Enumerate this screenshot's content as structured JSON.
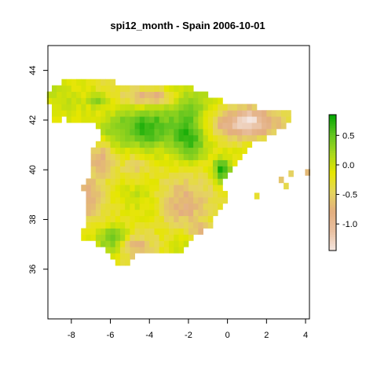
{
  "title": "spi12_month - Spain 2006-10-01",
  "chart_data": {
    "type": "heatmap",
    "title": "spi12_month - Spain 2006-10-01",
    "variable": "spi12_month",
    "region": "Spain",
    "date": "2006-10-01",
    "xlim": [
      -9.2,
      4.2
    ],
    "ylim": [
      34.0,
      45.0
    ],
    "x_ticks": [
      -8,
      -6,
      -4,
      -2,
      0,
      2,
      4
    ],
    "y_ticks": [
      36,
      38,
      40,
      42,
      44
    ],
    "grid": false,
    "legend": {
      "position": "right",
      "range": [
        -1.45,
        0.85
      ],
      "ticks": [
        0.5,
        0.0,
        -0.5,
        -1.0
      ],
      "tick_labels": [
        "0.5",
        "0.0",
        "-0.5",
        "-1.0"
      ],
      "colors": [
        "#f4e6e0",
        "#e9c0a0",
        "#e3ae7f",
        "#e5d65e",
        "#e6e600",
        "#a6d81c",
        "#5fc420",
        "#00a600"
      ]
    },
    "cell_size_deg": 0.25,
    "features": [
      {
        "type": "blob",
        "lon": -4.2,
        "lat": 41.7,
        "rx": 1.9,
        "ry": 0.85,
        "value": 0.7
      },
      {
        "type": "blob",
        "lon": -1.9,
        "lat": 41.5,
        "rx": 0.9,
        "ry": 1.2,
        "value": 0.8
      },
      {
        "type": "blob",
        "lon": -5.6,
        "lat": 41.4,
        "rx": 0.8,
        "ry": 0.6,
        "value": 0.4
      },
      {
        "type": "blob",
        "lon": -0.3,
        "lat": 40.0,
        "rx": 0.45,
        "ry": 0.5,
        "value": 0.75
      },
      {
        "type": "blob",
        "lon": -5.8,
        "lat": 37.2,
        "rx": 0.9,
        "ry": 0.6,
        "value": 0.55
      },
      {
        "type": "blob",
        "lon": -4.5,
        "lat": 39.0,
        "rx": 0.9,
        "ry": 0.55,
        "value": 0.1
      },
      {
        "type": "blob",
        "lon": -7.2,
        "lat": 42.0,
        "rx": 0.6,
        "ry": 0.5,
        "value": -0.05
      },
      {
        "type": "blob",
        "lon": -3.8,
        "lat": 38.3,
        "rx": 0.6,
        "ry": 0.45,
        "value": 0.05
      },
      {
        "type": "blob",
        "lon": -6.6,
        "lat": 42.8,
        "rx": 0.6,
        "ry": 0.3,
        "value": 0.35
      },
      {
        "type": "blob",
        "lon": -4.0,
        "lat": 42.95,
        "rx": 1.2,
        "ry": 0.3,
        "value": -0.8
      },
      {
        "type": "blob",
        "lon": -6.5,
        "lat": 40.4,
        "rx": 0.8,
        "ry": 0.8,
        "value": -0.75
      },
      {
        "type": "blob",
        "lon": -7.2,
        "lat": 38.9,
        "rx": 0.9,
        "ry": 1.0,
        "value": -0.85
      },
      {
        "type": "blob",
        "lon": -2.2,
        "lat": 38.6,
        "rx": 1.3,
        "ry": 1.0,
        "value": -0.8
      },
      {
        "type": "blob",
        "lon": -4.8,
        "lat": 40.1,
        "rx": 0.9,
        "ry": 0.6,
        "value": -0.5
      },
      {
        "type": "blob",
        "lon": -4.6,
        "lat": 36.9,
        "rx": 0.9,
        "ry": 0.5,
        "value": -0.7
      },
      {
        "type": "blob",
        "lon": 0.9,
        "lat": 41.85,
        "rx": 1.8,
        "ry": 0.6,
        "value": -1.15
      },
      {
        "type": "blob",
        "lon": 1.1,
        "lat": 42.0,
        "rx": 0.5,
        "ry": 0.3,
        "value": -1.45
      },
      {
        "type": "blob",
        "lon": -1.4,
        "lat": 37.6,
        "rx": 0.6,
        "ry": 0.4,
        "value": -0.7
      }
    ],
    "islands": [
      {
        "lon": 2.75,
        "lat": 39.6,
        "value": -0.6
      },
      {
        "lon": 3.0,
        "lat": 39.35,
        "value": -0.4
      },
      {
        "lon": 3.25,
        "lat": 39.85,
        "value": -0.5
      },
      {
        "lon": 4.1,
        "lat": 39.9,
        "value": -0.7
      },
      {
        "lon": 1.5,
        "lat": 38.95,
        "value": -0.3
      }
    ]
  }
}
